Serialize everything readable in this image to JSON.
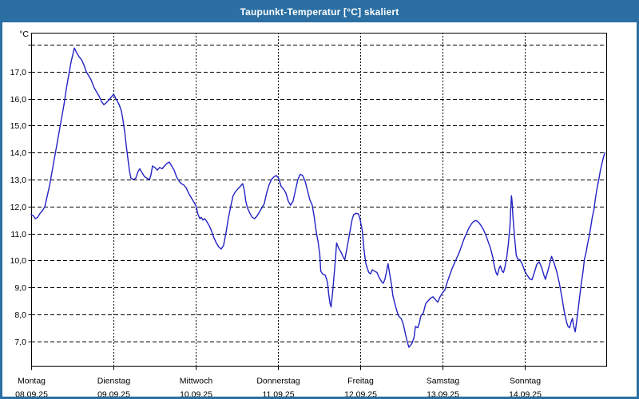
{
  "window": {
    "title": "Taupunkt-Temperatur [°C] skaliert"
  },
  "colors": {
    "title_bar_bg": "#2B6FA3",
    "frame": "#2B6FA3",
    "panel_bg": "#FFFFFF",
    "line": "#2222C4",
    "grid": "#000000",
    "axis": "#000000",
    "text": "#000000",
    "title_text": "#FFFFFF"
  },
  "chart_data": {
    "type": "line",
    "title": "Taupunkt-Temperatur [°C] skaliert",
    "y_axis_unit_label": "°C",
    "ylabel": "",
    "xlabel": "",
    "ylim": [
      6.05,
      18.45
    ],
    "xlim_hours": [
      0,
      168
    ],
    "grid": "dashed",
    "legend_position": "none",
    "y_gridlines": [
      7,
      8,
      9,
      10,
      11,
      12,
      13,
      14,
      15,
      16,
      17,
      18
    ],
    "y_tick_labels": [
      "7,0",
      "8,0",
      "9,0",
      "10,0",
      "11,0",
      "12,0",
      "13,0",
      "14,0",
      "15,0",
      "16,0",
      "17,0",
      ""
    ],
    "x_ticks": [
      {
        "hour": 0,
        "day": "Montag",
        "date": "08.09.25"
      },
      {
        "hour": 24,
        "day": "Dienstag",
        "date": "09.09.25"
      },
      {
        "hour": 48,
        "day": "Mittwoch",
        "date": "10.09.25"
      },
      {
        "hour": 72,
        "day": "Donnerstag",
        "date": "11.09.25"
      },
      {
        "hour": 96,
        "day": "Freitag",
        "date": "12.09.25"
      },
      {
        "hour": 120,
        "day": "Samstag",
        "date": "13.09.25"
      },
      {
        "hour": 144,
        "day": "Sonntag",
        "date": "14.09.25"
      }
    ],
    "series": [
      {
        "name": "Taupunkt",
        "points": [
          [
            0,
            11.7
          ],
          [
            0.7,
            11.65
          ],
          [
            1.2,
            11.55
          ],
          [
            1.9,
            11.6
          ],
          [
            2.6,
            11.75
          ],
          [
            3.3,
            11.85
          ],
          [
            4,
            12.0
          ],
          [
            4.7,
            12.4
          ],
          [
            5.4,
            12.8
          ],
          [
            6.1,
            13.3
          ],
          [
            6.8,
            13.8
          ],
          [
            7.5,
            14.3
          ],
          [
            8.2,
            14.8
          ],
          [
            8.9,
            15.3
          ],
          [
            9.6,
            15.8
          ],
          [
            10.3,
            16.4
          ],
          [
            11,
            16.9
          ],
          [
            11.7,
            17.4
          ],
          [
            12.6,
            17.88
          ],
          [
            13.3,
            17.7
          ],
          [
            14,
            17.55
          ],
          [
            14.7,
            17.45
          ],
          [
            15.4,
            17.25
          ],
          [
            16.1,
            17.0
          ],
          [
            16.8,
            16.85
          ],
          [
            17.5,
            16.7
          ],
          [
            18.4,
            16.4
          ],
          [
            19.1,
            16.25
          ],
          [
            19.8,
            16.1
          ],
          [
            20.5,
            15.9
          ],
          [
            21.2,
            15.78
          ],
          [
            21.9,
            15.85
          ],
          [
            22.6,
            15.95
          ],
          [
            23.3,
            16.05
          ],
          [
            24.1,
            16.17
          ],
          [
            24.7,
            16.0
          ],
          [
            25.2,
            15.9
          ],
          [
            25.6,
            15.8
          ],
          [
            26.3,
            15.55
          ],
          [
            26.8,
            15.2
          ],
          [
            27.3,
            14.75
          ],
          [
            27.7,
            14.3
          ],
          [
            28.2,
            13.8
          ],
          [
            28.7,
            13.3
          ],
          [
            29.1,
            13.05
          ],
          [
            29.8,
            13.0
          ],
          [
            30.5,
            13.05
          ],
          [
            31.2,
            13.3
          ],
          [
            31.7,
            13.4
          ],
          [
            32.4,
            13.25
          ],
          [
            33.1,
            13.1
          ],
          [
            33.8,
            13.05
          ],
          [
            34.5,
            13.0
          ],
          [
            34.9,
            13.15
          ],
          [
            35.4,
            13.5
          ],
          [
            36.1,
            13.45
          ],
          [
            36.8,
            13.35
          ],
          [
            37.5,
            13.45
          ],
          [
            38.2,
            13.4
          ],
          [
            38.9,
            13.5
          ],
          [
            39.6,
            13.6
          ],
          [
            40.3,
            13.65
          ],
          [
            41,
            13.5
          ],
          [
            41.7,
            13.35
          ],
          [
            42.4,
            13.1
          ],
          [
            43.1,
            12.95
          ],
          [
            43.8,
            12.85
          ],
          [
            44.5,
            12.8
          ],
          [
            45.2,
            12.7
          ],
          [
            45.9,
            12.5
          ],
          [
            46.6,
            12.35
          ],
          [
            47.3,
            12.2
          ],
          [
            48,
            12.05
          ],
          [
            48.7,
            11.7
          ],
          [
            49.2,
            11.55
          ],
          [
            49.6,
            11.6
          ],
          [
            50.1,
            11.5
          ],
          [
            50.6,
            11.55
          ],
          [
            51.2,
            11.45
          ],
          [
            51.9,
            11.3
          ],
          [
            52.6,
            11.1
          ],
          [
            53.3,
            10.85
          ],
          [
            54,
            10.65
          ],
          [
            54.7,
            10.5
          ],
          [
            55.4,
            10.42
          ],
          [
            56.1,
            10.55
          ],
          [
            56.8,
            11.0
          ],
          [
            57.5,
            11.55
          ],
          [
            58.2,
            12.0
          ],
          [
            58.9,
            12.4
          ],
          [
            59.6,
            12.55
          ],
          [
            60.3,
            12.65
          ],
          [
            61,
            12.75
          ],
          [
            61.7,
            12.85
          ],
          [
            62.2,
            12.6
          ],
          [
            62.6,
            12.2
          ],
          [
            63.1,
            11.95
          ],
          [
            63.8,
            11.75
          ],
          [
            64.5,
            11.6
          ],
          [
            65.2,
            11.55
          ],
          [
            65.9,
            11.65
          ],
          [
            66.6,
            11.8
          ],
          [
            67.3,
            11.95
          ],
          [
            68,
            12.1
          ],
          [
            68.7,
            12.5
          ],
          [
            69.4,
            12.8
          ],
          [
            70.1,
            13.0
          ],
          [
            70.8,
            13.1
          ],
          [
            71.5,
            13.15
          ],
          [
            72.2,
            13.05
          ],
          [
            72.9,
            12.75
          ],
          [
            73.6,
            12.65
          ],
          [
            74.3,
            12.5
          ],
          [
            75,
            12.2
          ],
          [
            75.7,
            12.05
          ],
          [
            76.4,
            12.2
          ],
          [
            77.1,
            12.6
          ],
          [
            77.8,
            13.0
          ],
          [
            78.5,
            13.2
          ],
          [
            79.2,
            13.15
          ],
          [
            79.9,
            12.95
          ],
          [
            80.6,
            12.6
          ],
          [
            81.3,
            12.25
          ],
          [
            82,
            12.05
          ],
          [
            82.6,
            11.6
          ],
          [
            83,
            11.2
          ],
          [
            83.4,
            10.9
          ],
          [
            83.7,
            10.7
          ],
          [
            84.2,
            10.2
          ],
          [
            84.5,
            9.6
          ],
          [
            85,
            9.5
          ],
          [
            85.8,
            9.45
          ],
          [
            86.2,
            9.3
          ],
          [
            86.5,
            9.15
          ],
          [
            86.8,
            8.75
          ],
          [
            87.2,
            8.4
          ],
          [
            87.5,
            8.27
          ],
          [
            88,
            8.9
          ],
          [
            88.4,
            9.5
          ],
          [
            88.8,
            10.1
          ],
          [
            89.1,
            10.65
          ],
          [
            89.7,
            10.45
          ],
          [
            90.4,
            10.3
          ],
          [
            91.1,
            10.1
          ],
          [
            91.5,
            10.03
          ],
          [
            92.2,
            10.5
          ],
          [
            92.9,
            11.0
          ],
          [
            93.6,
            11.5
          ],
          [
            94.1,
            11.7
          ],
          [
            94.8,
            11.75
          ],
          [
            95.5,
            11.72
          ],
          [
            96,
            11.5
          ],
          [
            96.6,
            11.1
          ],
          [
            97.1,
            10.4
          ],
          [
            97.6,
            9.9
          ],
          [
            98.1,
            9.7
          ],
          [
            98.5,
            9.55
          ],
          [
            99,
            9.5
          ],
          [
            99.5,
            9.65
          ],
          [
            100.2,
            9.6
          ],
          [
            100.9,
            9.55
          ],
          [
            101.6,
            9.35
          ],
          [
            102.3,
            9.2
          ],
          [
            102.7,
            9.15
          ],
          [
            103.2,
            9.3
          ],
          [
            103.7,
            9.6
          ],
          [
            104.1,
            9.88
          ],
          [
            104.6,
            9.5
          ],
          [
            105.1,
            9.1
          ],
          [
            105.5,
            8.7
          ],
          [
            106,
            8.45
          ],
          [
            106.5,
            8.2
          ],
          [
            107,
            8.0
          ],
          [
            107.4,
            7.9
          ],
          [
            107.9,
            7.85
          ],
          [
            108.4,
            7.7
          ],
          [
            108.8,
            7.5
          ],
          [
            109.3,
            7.2
          ],
          [
            109.8,
            6.95
          ],
          [
            110.2,
            6.78
          ],
          [
            110.7,
            6.85
          ],
          [
            111.2,
            6.95
          ],
          [
            111.7,
            7.15
          ],
          [
            112.1,
            7.55
          ],
          [
            112.8,
            7.5
          ],
          [
            113.3,
            7.7
          ],
          [
            113.7,
            7.95
          ],
          [
            114.4,
            8.05
          ],
          [
            115.1,
            8.4
          ],
          [
            115.8,
            8.5
          ],
          [
            116.5,
            8.6
          ],
          [
            117.2,
            8.65
          ],
          [
            117.9,
            8.55
          ],
          [
            118.6,
            8.45
          ],
          [
            119.3,
            8.65
          ],
          [
            120,
            8.8
          ],
          [
            120.7,
            8.9
          ],
          [
            121.4,
            9.2
          ],
          [
            122.1,
            9.45
          ],
          [
            122.8,
            9.7
          ],
          [
            123.5,
            9.9
          ],
          [
            124.2,
            10.1
          ],
          [
            124.9,
            10.3
          ],
          [
            125.6,
            10.55
          ],
          [
            126.3,
            10.8
          ],
          [
            127,
            11.0
          ],
          [
            127.7,
            11.2
          ],
          [
            128.4,
            11.35
          ],
          [
            129.1,
            11.45
          ],
          [
            129.8,
            11.48
          ],
          [
            130.5,
            11.42
          ],
          [
            131.2,
            11.3
          ],
          [
            131.9,
            11.15
          ],
          [
            132.6,
            10.95
          ],
          [
            133.3,
            10.7
          ],
          [
            134,
            10.45
          ],
          [
            134.7,
            10.1
          ],
          [
            135.1,
            9.8
          ],
          [
            135.6,
            9.55
          ],
          [
            136,
            9.45
          ],
          [
            136.5,
            9.7
          ],
          [
            136.9,
            9.8
          ],
          [
            137.4,
            9.6
          ],
          [
            137.8,
            9.55
          ],
          [
            138.3,
            9.8
          ],
          [
            138.7,
            10.1
          ],
          [
            139.2,
            10.6
          ],
          [
            139.7,
            11.3
          ],
          [
            139.9,
            11.9
          ],
          [
            140.1,
            12.4
          ],
          [
            140.3,
            12.2
          ],
          [
            140.5,
            11.7
          ],
          [
            141,
            10.9
          ],
          [
            141.5,
            10.2
          ],
          [
            141.9,
            10.05
          ],
          [
            142.6,
            10.02
          ],
          [
            143.3,
            9.85
          ],
          [
            144,
            9.6
          ],
          [
            144.7,
            9.45
          ],
          [
            145.4,
            9.32
          ],
          [
            146.1,
            9.28
          ],
          [
            146.8,
            9.55
          ],
          [
            147.5,
            9.85
          ],
          [
            148.2,
            9.95
          ],
          [
            148.9,
            9.75
          ],
          [
            149.6,
            9.45
          ],
          [
            150,
            9.3
          ],
          [
            150.7,
            9.6
          ],
          [
            151.4,
            9.95
          ],
          [
            151.8,
            10.15
          ],
          [
            152.3,
            10.0
          ],
          [
            152.7,
            9.85
          ],
          [
            153.4,
            9.55
          ],
          [
            154.1,
            9.15
          ],
          [
            154.8,
            8.65
          ],
          [
            155.5,
            8.1
          ],
          [
            156.2,
            7.7
          ],
          [
            156.6,
            7.55
          ],
          [
            157.1,
            7.5
          ],
          [
            157.5,
            7.7
          ],
          [
            157.9,
            7.85
          ],
          [
            158.2,
            7.6
          ],
          [
            158.7,
            7.35
          ],
          [
            159.1,
            7.7
          ],
          [
            159.6,
            8.2
          ],
          [
            160,
            8.65
          ],
          [
            160.5,
            9.15
          ],
          [
            161,
            9.6
          ],
          [
            161.4,
            10.05
          ],
          [
            161.9,
            10.3
          ],
          [
            162.3,
            10.6
          ],
          [
            162.8,
            10.9
          ],
          [
            163.2,
            11.2
          ],
          [
            163.7,
            11.6
          ],
          [
            164.2,
            11.9
          ],
          [
            164.6,
            12.3
          ],
          [
            165.1,
            12.7
          ],
          [
            165.6,
            13.0
          ],
          [
            166,
            13.3
          ],
          [
            166.5,
            13.6
          ],
          [
            167,
            13.85
          ],
          [
            167.4,
            14.0
          ]
        ]
      }
    ]
  }
}
